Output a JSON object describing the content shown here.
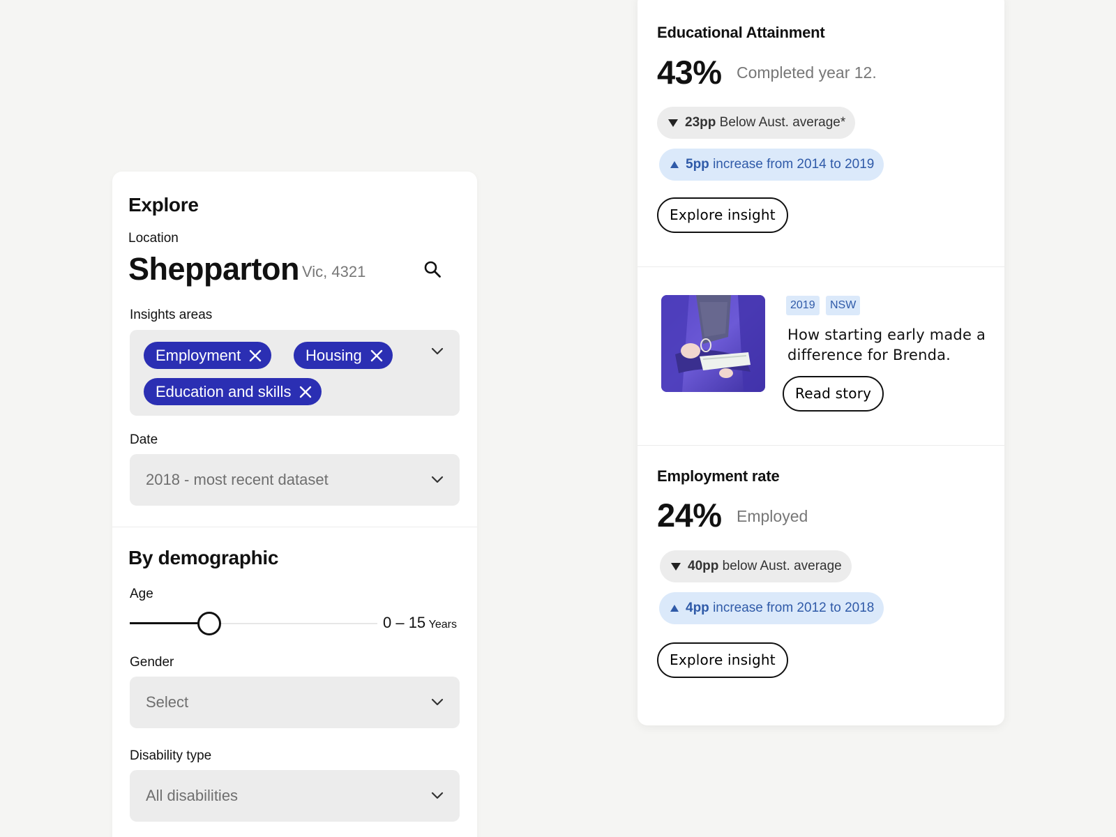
{
  "explore": {
    "title": "Explore",
    "location_label": "Location",
    "city": "Shepparton",
    "state": "Vic, 4321",
    "insights_label": "Insights areas",
    "tags": [
      "Employment",
      "Housing",
      "Education and skills"
    ],
    "date_label": "Date",
    "date_value": "2018 - most recent dataset"
  },
  "demographic": {
    "title": "By demographic",
    "age_label": "Age",
    "age_value": "0 – 15",
    "age_unit": "Years",
    "age_slider_fraction": 0.32,
    "gender_label": "Gender",
    "gender_value": "Select",
    "disability_label": "Disability type",
    "disability_value": "All disabilities"
  },
  "education": {
    "title": "Educational Attainment",
    "stat": "43%",
    "desc": "Completed year 12.",
    "below_value": "23pp",
    "below_text": "Below Aust. average*",
    "increase_value": "5pp",
    "increase_text": "increase from 2014 to 2019",
    "button": "Explore insight"
  },
  "story": {
    "year": "2019",
    "region": "NSW",
    "title": "How starting early made a difference for Brenda.",
    "button": "Read story"
  },
  "employment": {
    "title": "Employment rate",
    "stat": "24%",
    "desc": "Employed",
    "below_value": "40pp",
    "below_text": "below Aust. average",
    "increase_value": "4pp",
    "increase_text": "increase from 2012 to 2018",
    "button": "Explore insight"
  },
  "colors": {
    "tag_bg": "#2b2fb3",
    "pill_blue_bg": "#dbe9fa",
    "pill_blue_text": "#2f5aa8",
    "field_bg": "#ececec",
    "page_bg": "#f5f5f3"
  },
  "icons": [
    "search-icon",
    "close-icon",
    "chevron-down-icon",
    "triangle-down-icon",
    "triangle-up-icon"
  ]
}
